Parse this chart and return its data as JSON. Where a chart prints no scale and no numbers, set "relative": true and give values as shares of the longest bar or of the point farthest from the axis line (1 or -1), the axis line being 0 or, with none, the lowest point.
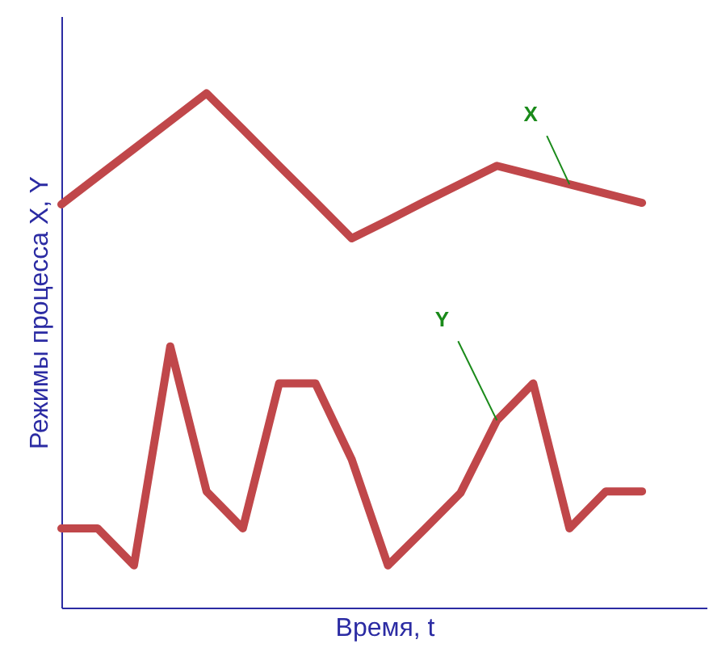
{
  "chart_data": {
    "type": "line",
    "relative": true,
    "xlabel": "Время, t",
    "ylabel": "Режимы процесса X, Y",
    "tick_labels": false,
    "grid": false,
    "marker": "none",
    "line_style": "solid",
    "categories": [
      null,
      null,
      null,
      null,
      null,
      null,
      null,
      null,
      null,
      null,
      null,
      null,
      null,
      null,
      null,
      null,
      null
    ],
    "series": [
      {
        "name": "X",
        "color": "#c0474a",
        "values": [
          0.784,
          0.838,
          0.892,
          0.946,
          1,
          0.93,
          0.859,
          0.789,
          0.718,
          0.753,
          0.789,
          0.824,
          0.859,
          0.841,
          0.823,
          0.805,
          0.787
        ]
      },
      {
        "name": "Y",
        "color": "#c0474a",
        "values": [
          0.154,
          0.154,
          0.082,
          0.508,
          0.226,
          0.154,
          0.436,
          0.436,
          0.288,
          0.082,
          0.152,
          0.223,
          0.364,
          0.436,
          0.154,
          0.226,
          0.226
        ]
      }
    ]
  }
}
